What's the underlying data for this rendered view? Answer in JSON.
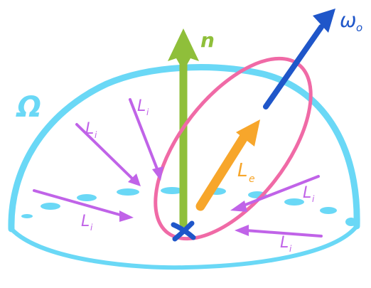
{
  "labels": {
    "normal": "n",
    "outgoing": "ω",
    "outgoing_sub": "o",
    "domain": "Ω",
    "emitted": "L",
    "emitted_sub": "e",
    "incident": "L",
    "incident_sub": "i"
  },
  "colors": {
    "hemisphere": "#6ad8f6",
    "normal": "#8fbf3a",
    "outgoing": "#1f56c9",
    "emitted": "#f7a62b",
    "lobe": "#f06aa6",
    "incident": "#c063e8",
    "point": "#1f56c9"
  }
}
